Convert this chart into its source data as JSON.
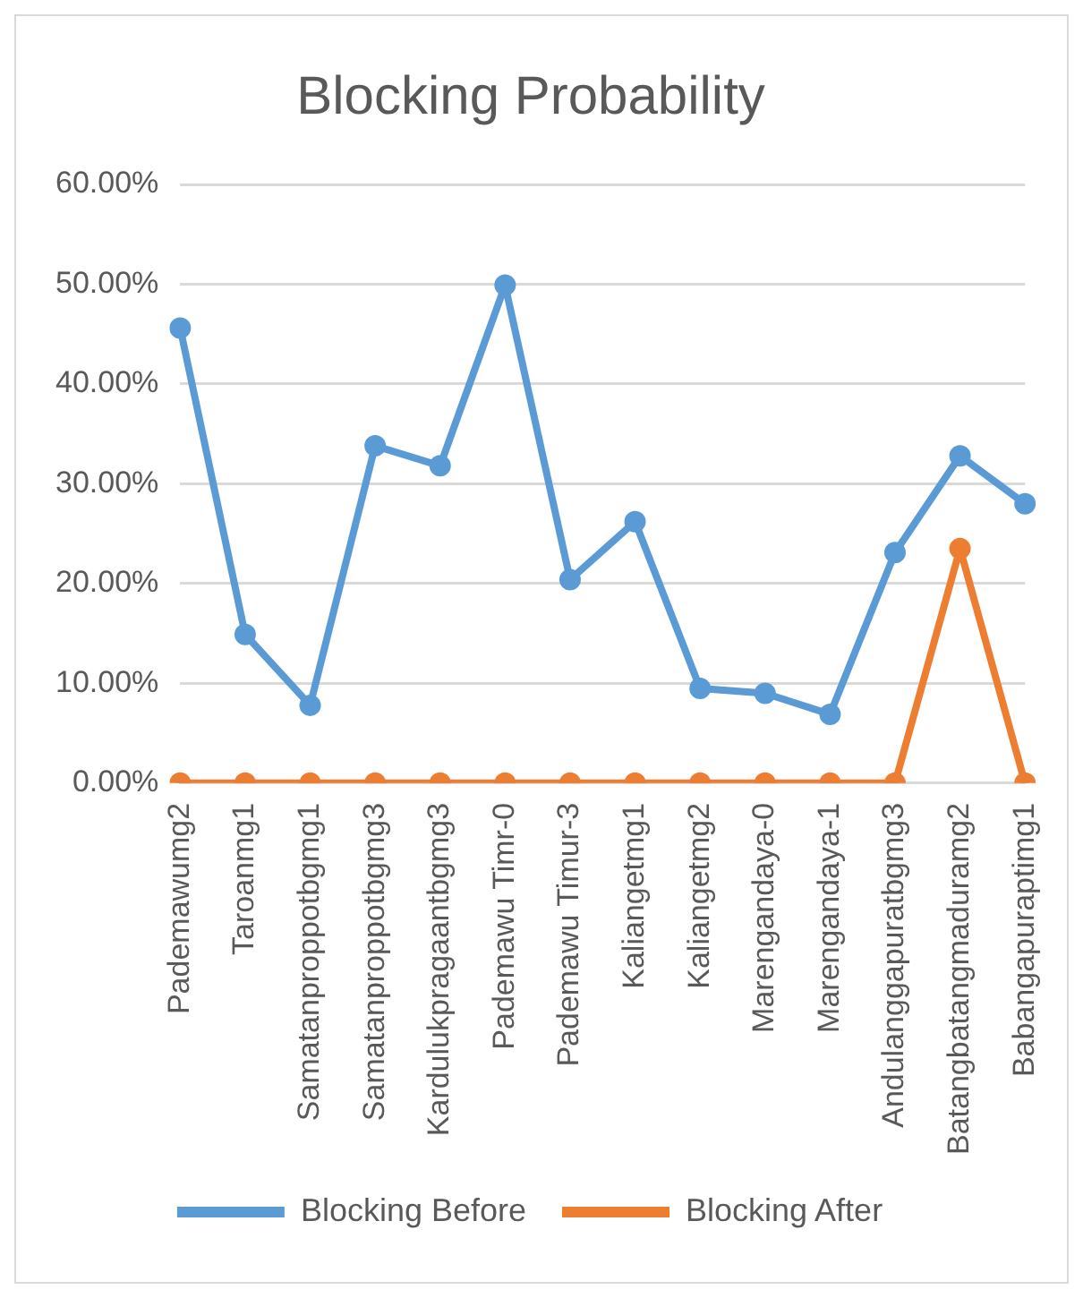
{
  "chart_data": {
    "type": "line",
    "title": "Blocking Probability",
    "categories": [
      "Pademawumg2",
      "Taroanmg1",
      "Samatanproppotbgmg1",
      "Samatanproppotbgmg3",
      "Kardulukpragaantbgmg3",
      "Pademawu Timr-0",
      "Pademawu Timur-3",
      "Kaliangetmg1",
      "Kaliangetmg2",
      "Marengandaya-0",
      "Marengandaya-1",
      "Andulanggapuratbgmg3",
      "Batangbatangmaduramg2",
      "Babangapuraptimg1"
    ],
    "series": [
      {
        "name": "Blocking Before",
        "color": "#5b9bd5",
        "values": [
          45.6,
          14.9,
          7.8,
          33.8,
          31.8,
          49.9,
          20.4,
          26.2,
          9.5,
          9.0,
          6.9,
          23.1,
          32.8,
          28.0
        ]
      },
      {
        "name": "Blocking After",
        "color": "#ed7d31",
        "values": [
          0,
          0,
          0,
          0,
          0,
          0,
          0,
          0,
          0,
          0,
          0,
          0,
          23.5,
          0
        ]
      }
    ],
    "ylim": [
      0,
      60
    ],
    "yticks": [
      {
        "value": 0,
        "label": "0.00%"
      },
      {
        "value": 10,
        "label": "10.00%"
      },
      {
        "value": 20,
        "label": "20.00%"
      },
      {
        "value": 30,
        "label": "30.00%"
      },
      {
        "value": 40,
        "label": "40.00%"
      },
      {
        "value": 50,
        "label": "50.00%"
      },
      {
        "value": 60,
        "label": "60.00%"
      }
    ],
    "grid": "y",
    "legend": "bottom",
    "marker": "circle",
    "line_style": "solid"
  }
}
